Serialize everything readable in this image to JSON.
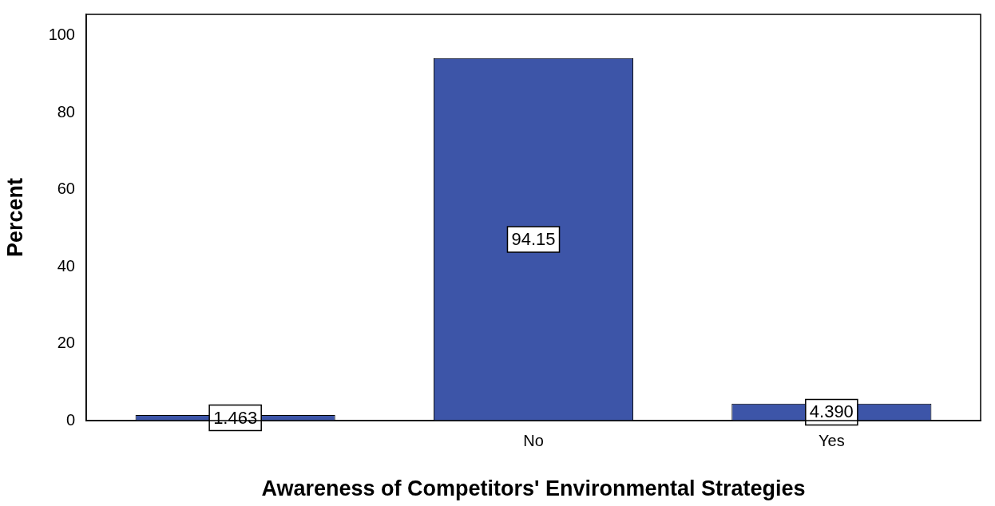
{
  "chart_data": {
    "type": "bar",
    "xlabel": "Awareness of Competitors' Environmental Strategies",
    "ylabel": "Percent",
    "categories": [
      null,
      "No",
      "Yes"
    ],
    "values": [
      1.463,
      94.15,
      4.39
    ],
    "value_labels": [
      "1.463",
      "94.15",
      "4.390"
    ],
    "color": "#3d55a8",
    "ylim": [
      0,
      105.5
    ],
    "yticks": [
      0,
      20,
      40,
      60,
      80,
      100
    ],
    "grid": false,
    "legend": false
  }
}
